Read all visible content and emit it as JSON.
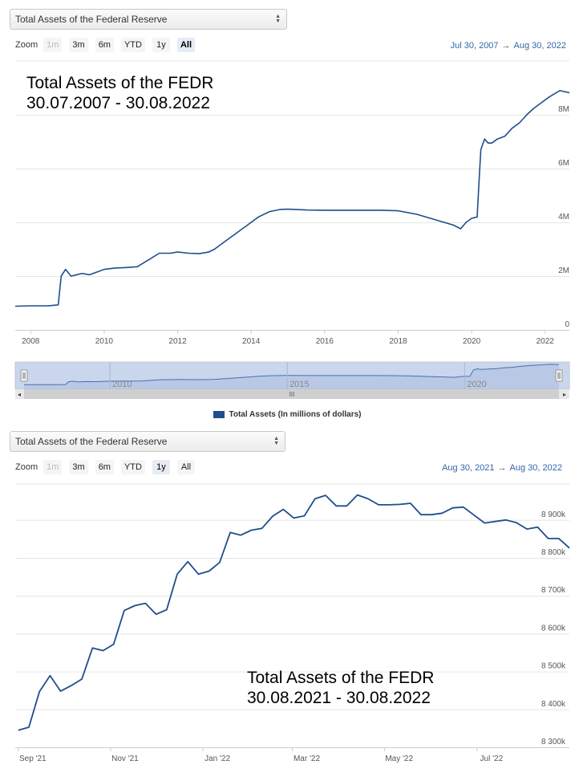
{
  "top": {
    "selector_label": "Total Assets of the Federal Reserve",
    "zoom": {
      "label": "Zoom",
      "buttons": [
        {
          "text": "1m",
          "state": "disabled"
        },
        {
          "text": "3m",
          "state": "normal"
        },
        {
          "text": "6m",
          "state": "normal"
        },
        {
          "text": "YTD",
          "state": "normal"
        },
        {
          "text": "1y",
          "state": "normal"
        },
        {
          "text": "All",
          "state": "active"
        }
      ]
    },
    "range_from": "Jul 30, 2007",
    "range_arrow": "→",
    "range_to": "Aug 30, 2022",
    "overlay_line1": "Total Assets of the FEDR",
    "overlay_line2": "30.07.2007 - 30.08.2022",
    "navigator_labels": [
      "2010",
      "2015",
      "2020"
    ],
    "scroll_grip": "III",
    "scroll_left": "◂",
    "scroll_right": "▸",
    "legend": "Total Assets (In millions of dollars)"
  },
  "bottom": {
    "selector_label": "Total Assets of the Federal Reserve",
    "zoom": {
      "label": "Zoom",
      "buttons": [
        {
          "text": "1m",
          "state": "disabled"
        },
        {
          "text": "3m",
          "state": "normal"
        },
        {
          "text": "6m",
          "state": "normal"
        },
        {
          "text": "YTD",
          "state": "normal"
        },
        {
          "text": "1y",
          "state": "active-light"
        },
        {
          "text": "All",
          "state": "normal"
        }
      ]
    },
    "range_from": "Aug 30, 2021",
    "range_arrow": "→",
    "range_to": "Aug 30, 2022",
    "overlay_line1": "Total Assets of the FEDR",
    "overlay_line2": "30.08.2021 - 30.08.2022"
  },
  "colors": {
    "line": "#1f4e8c",
    "navigator_fill": "#c9d6ec",
    "navigator_mask": "rgba(102,133,194,0.3)",
    "grid": "#e6e6e6",
    "range_text": "#3366aa"
  },
  "chart_data": [
    {
      "type": "line",
      "title": "",
      "series": [
        {
          "name": "Total Assets (In millions of dollars)",
          "x": [
            2007.58,
            2008.0,
            2008.5,
            2008.75,
            2008.83,
            2008.95,
            2009.1,
            2009.25,
            2009.4,
            2009.6,
            2009.8,
            2010.0,
            2010.3,
            2010.6,
            2010.9,
            2011.2,
            2011.5,
            2011.8,
            2012.0,
            2012.3,
            2012.6,
            2012.85,
            2013.0,
            2013.3,
            2013.6,
            2013.9,
            2014.2,
            2014.5,
            2014.8,
            2015.0,
            2015.5,
            2016.0,
            2016.5,
            2017.0,
            2017.5,
            2018.0,
            2018.5,
            2019.0,
            2019.5,
            2019.7,
            2019.85,
            2020.0,
            2020.15,
            2020.2,
            2020.25,
            2020.35,
            2020.45,
            2020.55,
            2020.7,
            2020.9,
            2021.1,
            2021.3,
            2021.5,
            2021.7,
            2021.9,
            2022.1,
            2022.25,
            2022.4,
            2022.66
          ],
          "values": [
            880,
            895,
            900,
            930,
            2000,
            2250,
            2000,
            2050,
            2100,
            2050,
            2150,
            2250,
            2300,
            2320,
            2350,
            2600,
            2850,
            2850,
            2900,
            2850,
            2840,
            2900,
            3000,
            3300,
            3600,
            3900,
            4200,
            4400,
            4480,
            4490,
            4460,
            4450,
            4450,
            4450,
            4450,
            4430,
            4300,
            4100,
            3900,
            3760,
            4000,
            4150,
            4200,
            5500,
            6700,
            7100,
            6950,
            6950,
            7100,
            7200,
            7500,
            7700,
            8000,
            8250,
            8450,
            8650,
            8780,
            8900,
            8820
          ]
        }
      ],
      "x_ticks": [
        "2008",
        "2010",
        "2012",
        "2014",
        "2016",
        "2018",
        "2020",
        "2022"
      ],
      "y_ticks": [
        "0",
        "2M",
        "4M",
        "6M",
        "8M"
      ],
      "xlim": [
        2007.58,
        2022.66
      ],
      "ylim": [
        0,
        9500
      ],
      "grid": true,
      "legend": "bottom-center"
    },
    {
      "type": "line",
      "title": "",
      "series": [
        {
          "name": "Total Assets (In millions of dollars)",
          "x": [
            "2021-09-01",
            "2021-09-08",
            "2021-09-15",
            "2021-09-22",
            "2021-09-29",
            "2021-10-06",
            "2021-10-13",
            "2021-10-20",
            "2021-10-27",
            "2021-11-03",
            "2021-11-10",
            "2021-11-17",
            "2021-11-24",
            "2021-12-01",
            "2021-12-08",
            "2021-12-15",
            "2021-12-22",
            "2021-12-29",
            "2022-01-05",
            "2022-01-12",
            "2022-01-19",
            "2022-01-26",
            "2022-02-02",
            "2022-02-09",
            "2022-02-16",
            "2022-02-23",
            "2022-03-02",
            "2022-03-09",
            "2022-03-16",
            "2022-03-23",
            "2022-03-30",
            "2022-04-06",
            "2022-04-13",
            "2022-04-20",
            "2022-04-27",
            "2022-05-04",
            "2022-05-11",
            "2022-05-18",
            "2022-05-25",
            "2022-06-01",
            "2022-06-08",
            "2022-06-15",
            "2022-06-22",
            "2022-06-29",
            "2022-07-06",
            "2022-07-13",
            "2022-07-20",
            "2022-07-27",
            "2022-08-03",
            "2022-08-10",
            "2022-08-17",
            "2022-08-24",
            "2022-08-31"
          ],
          "values": [
            8345,
            8353,
            8447,
            8489,
            8448,
            8463,
            8480,
            8562,
            8555,
            8572,
            8661,
            8674,
            8680,
            8651,
            8663,
            8757,
            8790,
            8757,
            8765,
            8788,
            8867,
            8860,
            8873,
            8878,
            8910,
            8928,
            8905,
            8911,
            8956,
            8965,
            8937,
            8937,
            8966,
            8956,
            8940,
            8940,
            8941,
            8944,
            8914,
            8914,
            8918,
            8932,
            8934,
            8913,
            8892,
            8896,
            8900,
            8893,
            8876,
            8881,
            8851,
            8851,
            8826
          ]
        }
      ],
      "x_ticks": [
        "Sep '21",
        "Nov '21",
        "Jan '22",
        "Mar '22",
        "May '22",
        "Jul '22"
      ],
      "y_ticks": [
        "8 300k",
        "8 400k",
        "8 500k",
        "8 600k",
        "8 700k",
        "8 800k",
        "8 900k"
      ],
      "ylim": [
        8300,
        8980
      ],
      "grid": true
    }
  ]
}
